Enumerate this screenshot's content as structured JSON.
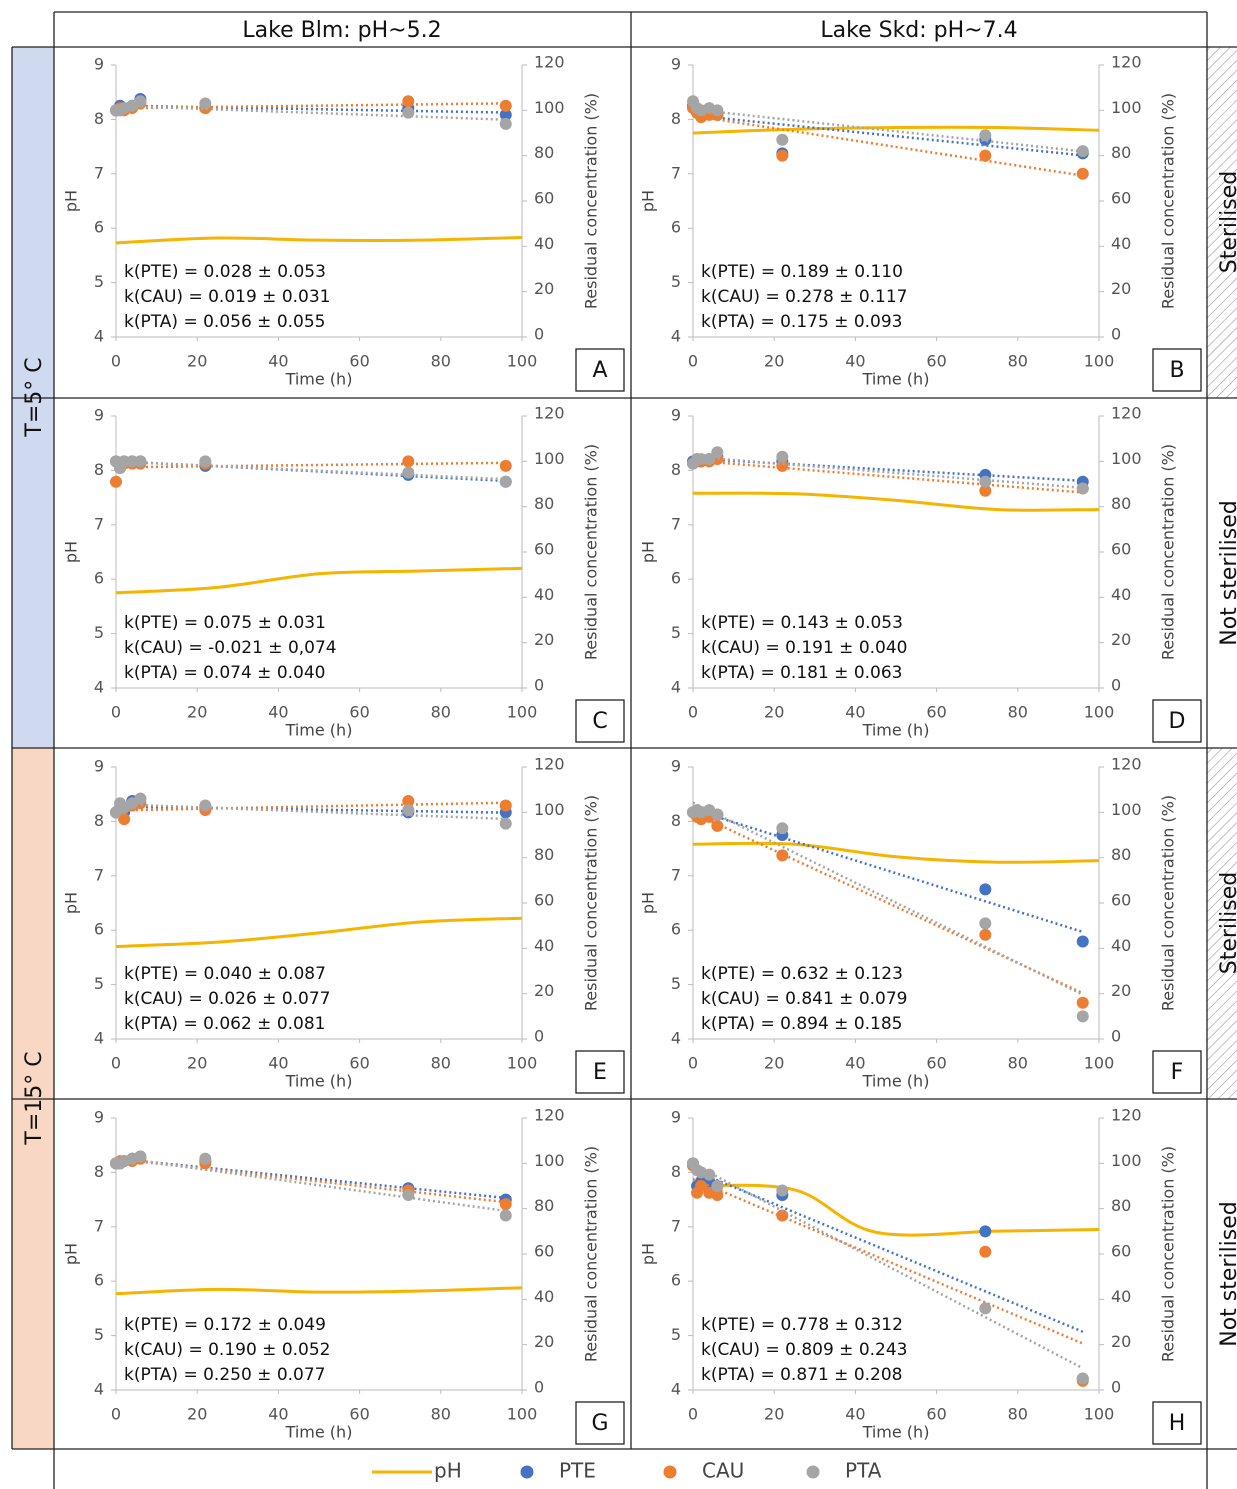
{
  "headers": [
    "Lake Blm: pH~5.2",
    "Lake Skd: pH~7.4"
  ],
  "temperatures": [
    "T=5° C",
    "T=15° C"
  ],
  "treatments": [
    "Sterilised",
    "Not sterilised",
    "Sterilised",
    "Not sterilised"
  ],
  "chart_data": [
    {
      "type": "scatter",
      "label": "A",
      "xlabel": "Time (h)",
      "ylabel": "pH",
      "y2label": "Residual concentration (%)",
      "xlim": [
        0,
        100
      ],
      "xticks": [
        0,
        20,
        40,
        60,
        80,
        100
      ],
      "ylim": [
        4,
        9
      ],
      "yticks": [
        4,
        5,
        6,
        7,
        8,
        9
      ],
      "y2lim": [
        0,
        120
      ],
      "y2ticks": [
        0,
        20,
        40,
        60,
        80,
        100,
        120
      ],
      "annotations": [
        "k(PTE) = 0.028 ± 0.053",
        "k(CAU) = 0.019 ± 0.031",
        "k(PTA) = 0.056 ± 0.055"
      ],
      "x": [
        0,
        1,
        2,
        4,
        6,
        22,
        72,
        96
      ],
      "series": [
        {
          "name": "pH",
          "type": "line",
          "color": "#f5b400",
          "x": [
            0,
            25,
            50,
            75,
            100
          ],
          "values": [
            5.73,
            5.82,
            5.78,
            5.78,
            5.83
          ]
        },
        {
          "name": "PTE",
          "color": "#4472c4",
          "axis": "y2",
          "values": [
            100,
            102,
            101,
            102,
            105,
            101,
            101,
            98
          ]
        },
        {
          "name": "CAU",
          "color": "#ed7d31",
          "axis": "y2",
          "values": [
            100,
            101,
            100,
            101,
            103,
            101,
            104,
            102
          ]
        },
        {
          "name": "PTA",
          "color": "#a5a5a5",
          "axis": "y2",
          "values": [
            100,
            100,
            101,
            102,
            104,
            103,
            99,
            94
          ]
        }
      ]
    },
    {
      "type": "scatter",
      "label": "B",
      "xlabel": "Time (h)",
      "ylabel": "pH",
      "y2label": "Residual concentration (%)",
      "xlim": [
        0,
        100
      ],
      "xticks": [
        0,
        20,
        40,
        60,
        80,
        100
      ],
      "ylim": [
        4,
        9
      ],
      "yticks": [
        4,
        5,
        6,
        7,
        8,
        9
      ],
      "y2lim": [
        0,
        120
      ],
      "y2ticks": [
        0,
        20,
        40,
        60,
        80,
        100,
        120
      ],
      "annotations": [
        "k(PTE) = 0.189 ± 0.110",
        "k(CAU) = 0.278 ± 0.117",
        "k(PTA) = 0.175 ± 0.093"
      ],
      "x": [
        0,
        1,
        2,
        4,
        6,
        22,
        72,
        96
      ],
      "series": [
        {
          "name": "pH",
          "type": "line",
          "color": "#f5b400",
          "x": [
            0,
            25,
            50,
            75,
            100
          ],
          "values": [
            7.75,
            7.82,
            7.85,
            7.85,
            7.8
          ]
        },
        {
          "name": "PTE",
          "color": "#4472c4",
          "axis": "y2",
          "values": [
            102,
            99,
            98,
            99,
            98,
            81,
            87,
            81
          ]
        },
        {
          "name": "CAU",
          "color": "#ed7d31",
          "axis": "y2",
          "values": [
            101,
            99,
            97,
            98,
            98,
            80,
            80,
            72
          ]
        },
        {
          "name": "PTA",
          "color": "#a5a5a5",
          "axis": "y2",
          "values": [
            104,
            101,
            100,
            101,
            100,
            87,
            89,
            82
          ]
        }
      ]
    },
    {
      "type": "scatter",
      "label": "C",
      "xlabel": "Time (h)",
      "ylabel": "pH",
      "y2label": "Residual concentration (%)",
      "xlim": [
        0,
        100
      ],
      "xticks": [
        0,
        20,
        40,
        60,
        80,
        100
      ],
      "ylim": [
        4,
        9
      ],
      "yticks": [
        4,
        5,
        6,
        7,
        8,
        9
      ],
      "y2lim": [
        0,
        120
      ],
      "y2ticks": [
        0,
        20,
        40,
        60,
        80,
        100,
        120
      ],
      "annotations": [
        "k(PTE) = 0.075 ± 0.031",
        "k(CAU) = -0.021 ± 0,074",
        "k(PTA) = 0.074 ± 0.040"
      ],
      "x": [
        0,
        1,
        2,
        4,
        6,
        22,
        72,
        96
      ],
      "series": [
        {
          "name": "pH",
          "type": "line",
          "color": "#f5b400",
          "x": [
            0,
            25,
            50,
            75,
            100
          ],
          "values": [
            5.75,
            5.85,
            6.1,
            6.15,
            6.2
          ]
        },
        {
          "name": "PTE",
          "color": "#4472c4",
          "axis": "y2",
          "values": [
            100,
            99,
            100,
            100,
            100,
            98,
            94,
            91
          ]
        },
        {
          "name": "CAU",
          "color": "#ed7d31",
          "axis": "y2",
          "values": [
            91,
            98,
            99,
            99,
            99,
            99,
            100,
            98
          ]
        },
        {
          "name": "PTA",
          "color": "#a5a5a5",
          "axis": "y2",
          "values": [
            100,
            97,
            100,
            100,
            100,
            100,
            95,
            91
          ]
        }
      ]
    },
    {
      "type": "scatter",
      "label": "D",
      "xlabel": "Time (h)",
      "ylabel": "pH",
      "y2label": "Residual concentration (%)",
      "xlim": [
        0,
        100
      ],
      "xticks": [
        0,
        20,
        40,
        60,
        80,
        100
      ],
      "ylim": [
        4,
        9
      ],
      "yticks": [
        4,
        5,
        6,
        7,
        8,
        9
      ],
      "y2lim": [
        0,
        120
      ],
      "y2ticks": [
        0,
        20,
        40,
        60,
        80,
        100,
        120
      ],
      "annotations": [
        "k(PTE) = 0.143 ± 0.053",
        "k(CAU) = 0.191 ± 0.040",
        "k(PTA) = 0.181 ± 0.063"
      ],
      "x": [
        0,
        1,
        2,
        4,
        6,
        22,
        72,
        96
      ],
      "series": [
        {
          "name": "pH",
          "type": "line",
          "color": "#f5b400",
          "x": [
            0,
            25,
            50,
            75,
            100
          ],
          "values": [
            7.58,
            7.57,
            7.45,
            7.28,
            7.28
          ]
        },
        {
          "name": "PTE",
          "color": "#4472c4",
          "axis": "y2",
          "values": [
            100,
            101,
            100,
            101,
            102,
            100,
            94,
            91
          ]
        },
        {
          "name": "CAU",
          "color": "#ed7d31",
          "axis": "y2",
          "values": [
            99,
            100,
            100,
            100,
            101,
            98,
            87,
            88
          ]
        },
        {
          "name": "PTA",
          "color": "#a5a5a5",
          "axis": "y2",
          "values": [
            99,
            101,
            101,
            101,
            104,
            102,
            91,
            88
          ]
        }
      ]
    },
    {
      "type": "scatter",
      "label": "E",
      "xlabel": "Time (h)",
      "ylabel": "pH",
      "y2label": "Residual concentration (%)",
      "xlim": [
        0,
        100
      ],
      "xticks": [
        0,
        20,
        40,
        60,
        80,
        100
      ],
      "ylim": [
        4,
        9
      ],
      "yticks": [
        4,
        5,
        6,
        7,
        8,
        9
      ],
      "y2lim": [
        0,
        120
      ],
      "y2ticks": [
        0,
        20,
        40,
        60,
        80,
        100,
        120
      ],
      "annotations": [
        "k(PTE) = 0.040 ± 0.087",
        "k(CAU) = 0.026 ± 0.077",
        "k(PTA) = 0.062 ± 0.081"
      ],
      "x": [
        0,
        1,
        2,
        4,
        6,
        22,
        72,
        96
      ],
      "series": [
        {
          "name": "pH",
          "type": "line",
          "color": "#f5b400",
          "x": [
            0,
            25,
            50,
            75,
            100
          ],
          "values": [
            5.7,
            5.78,
            5.95,
            6.15,
            6.22
          ]
        },
        {
          "name": "PTE",
          "color": "#4472c4",
          "axis": "y2",
          "values": [
            100,
            102,
            100,
            105,
            106,
            102,
            100,
            100
          ]
        },
        {
          "name": "CAU",
          "color": "#ed7d31",
          "axis": "y2",
          "values": [
            100,
            101,
            97,
            103,
            104,
            101,
            105,
            103
          ]
        },
        {
          "name": "PTA",
          "color": "#a5a5a5",
          "axis": "y2",
          "values": [
            100,
            104,
            102,
            104,
            106,
            103,
            101,
            95
          ]
        }
      ]
    },
    {
      "type": "scatter",
      "label": "F",
      "xlabel": "Time (h)",
      "ylabel": "pH",
      "y2label": "Residual concentration (%)",
      "xlim": [
        0,
        100
      ],
      "xticks": [
        0,
        20,
        40,
        60,
        80,
        100
      ],
      "ylim": [
        4,
        9
      ],
      "yticks": [
        4,
        5,
        6,
        7,
        8,
        9
      ],
      "y2lim": [
        0,
        120
      ],
      "y2ticks": [
        0,
        20,
        40,
        60,
        80,
        100,
        120
      ],
      "annotations": [
        "k(PTE) = 0.632 ± 0.123",
        "k(CAU) = 0.841 ± 0.079",
        "k(PTA) = 0.894 ± 0.185"
      ],
      "x": [
        0,
        1,
        2,
        4,
        6,
        22,
        72,
        96
      ],
      "series": [
        {
          "name": "pH",
          "type": "line",
          "color": "#f5b400",
          "x": [
            0,
            25,
            50,
            75,
            100
          ],
          "values": [
            7.58,
            7.58,
            7.35,
            7.25,
            7.28
          ]
        },
        {
          "name": "PTE",
          "color": "#4472c4",
          "axis": "y2",
          "values": [
            100,
            99,
            100,
            99,
            99,
            90,
            66,
            43
          ]
        },
        {
          "name": "CAU",
          "color": "#ed7d31",
          "axis": "y2",
          "values": [
            100,
            98,
            97,
            98,
            94,
            81,
            46,
            16
          ]
        },
        {
          "name": "PTA",
          "color": "#a5a5a5",
          "axis": "y2",
          "values": [
            100,
            101,
            100,
            101,
            99,
            93,
            51,
            10
          ]
        }
      ]
    },
    {
      "type": "scatter",
      "label": "G",
      "xlabel": "Time (h)",
      "ylabel": "pH",
      "y2label": "Residual concentration (%)",
      "xlim": [
        0,
        100
      ],
      "xticks": [
        0,
        20,
        40,
        60,
        80,
        100
      ],
      "ylim": [
        4,
        9
      ],
      "yticks": [
        4,
        5,
        6,
        7,
        8,
        9
      ],
      "y2lim": [
        0,
        120
      ],
      "y2ticks": [
        0,
        20,
        40,
        60,
        80,
        100,
        120
      ],
      "annotations": [
        "k(PTE) = 0.172 ± 0.049",
        "k(CAU) = 0.190 ± 0.052",
        "k(PTA) = 0.250 ± 0.077"
      ],
      "x": [
        0,
        1,
        2,
        4,
        6,
        22,
        72,
        96
      ],
      "series": [
        {
          "name": "pH",
          "type": "line",
          "color": "#f5b400",
          "x": [
            0,
            25,
            50,
            75,
            100
          ],
          "values": [
            5.77,
            5.85,
            5.8,
            5.82,
            5.88
          ]
        },
        {
          "name": "PTE",
          "color": "#4472c4",
          "axis": "y2",
          "values": [
            100,
            100,
            101,
            102,
            103,
            101,
            89,
            84
          ]
        },
        {
          "name": "CAU",
          "color": "#ed7d31",
          "axis": "y2",
          "values": [
            100,
            101,
            101,
            101,
            102,
            100,
            88,
            82
          ]
        },
        {
          "name": "PTA",
          "color": "#a5a5a5",
          "axis": "y2",
          "values": [
            100,
            100,
            101,
            102,
            103,
            102,
            86,
            77
          ]
        }
      ]
    },
    {
      "type": "scatter",
      "label": "H",
      "xlabel": "Time (h)",
      "ylabel": "pH",
      "y2label": "Residual concentration (%)",
      "xlim": [
        0,
        100
      ],
      "xticks": [
        0,
        20,
        40,
        60,
        80,
        100
      ],
      "ylim": [
        4,
        9
      ],
      "yticks": [
        4,
        5,
        6,
        7,
        8,
        9
      ],
      "y2lim": [
        0,
        120
      ],
      "y2ticks": [
        0,
        20,
        40,
        60,
        80,
        100,
        120
      ],
      "annotations": [
        "k(PTE) = 0.778 ± 0.312",
        "k(CAU) = 0.809 ± 0.243",
        "k(PTA) = 0.871 ± 0.208"
      ],
      "x": [
        0,
        1,
        2,
        4,
        6,
        22,
        72,
        96
      ],
      "series": [
        {
          "name": "pH",
          "type": "line",
          "color": "#f5b400",
          "x": [
            0,
            25,
            45,
            75,
            100
          ],
          "values": [
            7.75,
            7.68,
            6.9,
            6.92,
            6.95
          ]
        },
        {
          "name": "PTE",
          "color": "#4472c4",
          "axis": "y2",
          "values": [
            100,
            90,
            92,
            92,
            90,
            86,
            70,
            5
          ]
        },
        {
          "name": "CAU",
          "color": "#ed7d31",
          "axis": "y2",
          "values": [
            99,
            87,
            90,
            87,
            86,
            77,
            61,
            4
          ]
        },
        {
          "name": "PTA",
          "color": "#a5a5a5",
          "axis": "y2",
          "values": [
            100,
            97,
            96,
            95,
            90,
            88,
            36,
            5
          ]
        }
      ]
    }
  ]
}
